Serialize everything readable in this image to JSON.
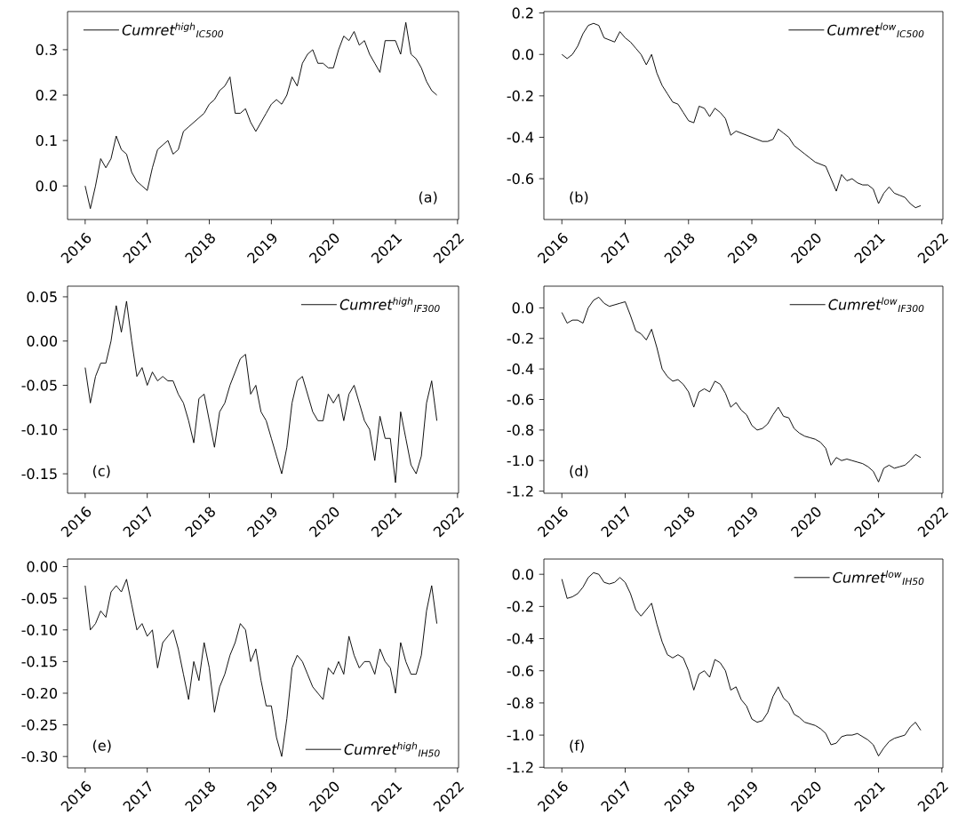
{
  "chart_data": [
    {
      "type": "line",
      "legend": "top left",
      "annotations": [
        "(a)"
      ],
      "xlim": [
        "2015-09-19",
        "2022-01-07"
      ],
      "xticks": [
        "2016",
        "2017",
        "2018",
        "2019",
        "2020",
        "2021",
        "2022"
      ],
      "ylim": [
        -0.074,
        0.384
      ],
      "yticks": [
        {
          "value": 0,
          "label": "0.0"
        },
        0.1,
        0.2,
        0.3
      ],
      "x": [
        "2016-01",
        "2016-02",
        "2016-03",
        "2016-04",
        "2016-05",
        "2016-06",
        "2016-07",
        "2016-08",
        "2016-09",
        "2016-10",
        "2016-11",
        "2016-12",
        "2017-01",
        "2017-02",
        "2017-03",
        "2017-04",
        "2017-05",
        "2017-06",
        "2017-07",
        "2017-08",
        "2017-09",
        "2017-10",
        "2017-11",
        "2017-12",
        "2018-01",
        "2018-02",
        "2018-03",
        "2018-04",
        "2018-05",
        "2018-06",
        "2018-07",
        "2018-08",
        "2018-09",
        "2018-10",
        "2018-11",
        "2018-12",
        "2019-01",
        "2019-02",
        "2019-03",
        "2019-04",
        "2019-05",
        "2019-06",
        "2019-07",
        "2019-08",
        "2019-09",
        "2019-10",
        "2019-11",
        "2019-12",
        "2020-01",
        "2020-02",
        "2020-03",
        "2020-04",
        "2020-05",
        "2020-06",
        "2020-07",
        "2020-08",
        "2020-09",
        "2020-10",
        "2020-11",
        "2020-12",
        "2021-01",
        "2021-02",
        "2021-03",
        "2021-04",
        "2021-05",
        "2021-06",
        "2021-07",
        "2021-08",
        "2021-09"
      ],
      "series": [
        {
          "name": "Cumret$^{high}$$_{IC500}$",
          "color": "#000000",
          "values": [
            0.0,
            -0.05,
            0.0,
            0.06,
            0.04,
            0.06,
            0.11,
            0.08,
            0.07,
            0.03,
            0.01,
            0.0,
            -0.01,
            0.04,
            0.08,
            0.09,
            0.1,
            0.07,
            0.08,
            0.12,
            0.13,
            0.14,
            0.15,
            0.16,
            0.18,
            0.19,
            0.21,
            0.22,
            0.24,
            0.16,
            0.16,
            0.17,
            0.14,
            0.12,
            0.14,
            0.16,
            0.18,
            0.19,
            0.18,
            0.2,
            0.24,
            0.22,
            0.27,
            0.29,
            0.3,
            0.27,
            0.27,
            0.26,
            0.26,
            0.3,
            0.33,
            0.32,
            0.34,
            0.31,
            0.32,
            0.29,
            0.27,
            0.25,
            0.32,
            0.32,
            0.32,
            0.29,
            0.36,
            0.29,
            0.28,
            0.26,
            0.23,
            0.21,
            0.2
          ]
        }
      ]
    },
    {
      "type": "line",
      "legend": "top right",
      "annotations": [
        "(b)"
      ],
      "xlim": [
        "2015-09-19",
        "2022-01-07"
      ],
      "xticks": [
        "2016",
        "2017",
        "2018",
        "2019",
        "2020",
        "2021",
        "2022"
      ],
      "ylim": [
        -0.797,
        0.207
      ],
      "yticks": [
        -0.6,
        -0.4,
        -0.2,
        {
          "value": 0,
          "label": "0.0"
        },
        0.2
      ],
      "x": [
        "2016-01",
        "2016-02",
        "2016-03",
        "2016-04",
        "2016-05",
        "2016-06",
        "2016-07",
        "2016-08",
        "2016-09",
        "2016-10",
        "2016-11",
        "2016-12",
        "2017-01",
        "2017-02",
        "2017-03",
        "2017-04",
        "2017-05",
        "2017-06",
        "2017-07",
        "2017-08",
        "2017-09",
        "2017-10",
        "2017-11",
        "2017-12",
        "2018-01",
        "2018-02",
        "2018-03",
        "2018-04",
        "2018-05",
        "2018-06",
        "2018-07",
        "2018-08",
        "2018-09",
        "2018-10",
        "2018-11",
        "2018-12",
        "2019-01",
        "2019-02",
        "2019-03",
        "2019-04",
        "2019-05",
        "2019-06",
        "2019-07",
        "2019-08",
        "2019-09",
        "2019-10",
        "2019-11",
        "2019-12",
        "2020-01",
        "2020-02",
        "2020-03",
        "2020-04",
        "2020-05",
        "2020-06",
        "2020-07",
        "2020-08",
        "2020-09",
        "2020-10",
        "2020-11",
        "2020-12",
        "2021-01",
        "2021-02",
        "2021-03",
        "2021-04",
        "2021-05",
        "2021-06",
        "2021-07",
        "2021-08",
        "2021-09"
      ],
      "series": [
        {
          "name": "Cumret$^{low}$$_{IC500}$",
          "color": "#000000",
          "values": [
            0.0,
            -0.02,
            0.0,
            0.04,
            0.1,
            0.14,
            0.15,
            0.14,
            0.08,
            0.07,
            0.06,
            0.11,
            0.08,
            0.06,
            0.03,
            0.0,
            -0.05,
            0.0,
            -0.09,
            -0.15,
            -0.19,
            -0.23,
            -0.24,
            -0.28,
            -0.32,
            -0.33,
            -0.25,
            -0.26,
            -0.3,
            -0.26,
            -0.28,
            -0.31,
            -0.39,
            -0.37,
            -0.38,
            -0.39,
            -0.4,
            -0.41,
            -0.42,
            -0.42,
            -0.41,
            -0.36,
            -0.38,
            -0.4,
            -0.44,
            -0.46,
            -0.48,
            -0.5,
            -0.52,
            -0.53,
            -0.54,
            -0.6,
            -0.66,
            -0.58,
            -0.61,
            -0.6,
            -0.62,
            -0.63,
            -0.63,
            -0.65,
            -0.72,
            -0.67,
            -0.64,
            -0.67,
            -0.68,
            -0.69,
            -0.72,
            -0.74,
            -0.73
          ]
        }
      ]
    },
    {
      "type": "line",
      "legend": "top right",
      "annotations": [
        "(c)"
      ],
      "xlim": [
        "2015-09-19",
        "2022-01-07"
      ],
      "xticks": [
        "2016",
        "2017",
        "2018",
        "2019",
        "2020",
        "2021",
        "2022"
      ],
      "ylim": [
        -0.172,
        0.062
      ],
      "yticks": [
        -0.15,
        {
          "value": -0.1,
          "label": "-0.10"
        },
        -0.05,
        {
          "value": 0,
          "label": "0.00"
        },
        0.05
      ],
      "x": [
        "2016-01",
        "2016-02",
        "2016-03",
        "2016-04",
        "2016-05",
        "2016-06",
        "2016-07",
        "2016-08",
        "2016-09",
        "2016-10",
        "2016-11",
        "2016-12",
        "2017-01",
        "2017-02",
        "2017-03",
        "2017-04",
        "2017-05",
        "2017-06",
        "2017-07",
        "2017-08",
        "2017-09",
        "2017-10",
        "2017-11",
        "2017-12",
        "2018-01",
        "2018-02",
        "2018-03",
        "2018-04",
        "2018-05",
        "2018-06",
        "2018-07",
        "2018-08",
        "2018-09",
        "2018-10",
        "2018-11",
        "2018-12",
        "2019-01",
        "2019-02",
        "2019-03",
        "2019-04",
        "2019-05",
        "2019-06",
        "2019-07",
        "2019-08",
        "2019-09",
        "2019-10",
        "2019-11",
        "2019-12",
        "2020-01",
        "2020-02",
        "2020-03",
        "2020-04",
        "2020-05",
        "2020-06",
        "2020-07",
        "2020-08",
        "2020-09",
        "2020-10",
        "2020-11",
        "2020-12",
        "2021-01",
        "2021-02",
        "2021-03",
        "2021-04",
        "2021-05",
        "2021-06",
        "2021-07",
        "2021-08",
        "2021-09"
      ],
      "series": [
        {
          "name": "Cumret$^{high}$$_{IF300}$",
          "color": "#000000",
          "values": [
            -0.03,
            -0.07,
            -0.04,
            -0.025,
            -0.025,
            0.0,
            0.04,
            0.01,
            0.045,
            0.0,
            -0.04,
            -0.03,
            -0.05,
            -0.035,
            -0.045,
            -0.04,
            -0.045,
            -0.045,
            -0.06,
            -0.07,
            -0.09,
            -0.115,
            -0.065,
            -0.06,
            -0.09,
            -0.12,
            -0.08,
            -0.07,
            -0.05,
            -0.035,
            -0.02,
            -0.015,
            -0.06,
            -0.05,
            -0.08,
            -0.09,
            -0.11,
            -0.13,
            -0.15,
            -0.12,
            -0.07,
            -0.045,
            -0.04,
            -0.06,
            -0.08,
            -0.09,
            -0.09,
            -0.06,
            -0.07,
            -0.06,
            -0.09,
            -0.06,
            -0.05,
            -0.07,
            -0.09,
            -0.1,
            -0.135,
            -0.085,
            -0.11,
            -0.11,
            -0.16,
            -0.08,
            -0.11,
            -0.14,
            -0.15,
            -0.13,
            -0.07,
            -0.045,
            -0.09
          ]
        }
      ]
    },
    {
      "type": "line",
      "legend": "top right",
      "annotations": [
        "(d)"
      ],
      "xlim": [
        "2015-09-19",
        "2022-01-07"
      ],
      "xticks": [
        "2016",
        "2017",
        "2018",
        "2019",
        "2020",
        "2021",
        "2022"
      ],
      "ylim": [
        -1.214,
        0.142
      ],
      "yticks": [
        -1.2,
        {
          "value": -1,
          "label": "-1.0"
        },
        -0.8,
        -0.6,
        -0.4,
        -0.2,
        {
          "value": 0,
          "label": "0.0"
        }
      ],
      "x": [
        "2016-01",
        "2016-02",
        "2016-03",
        "2016-04",
        "2016-05",
        "2016-06",
        "2016-07",
        "2016-08",
        "2016-09",
        "2016-10",
        "2016-11",
        "2016-12",
        "2017-01",
        "2017-02",
        "2017-03",
        "2017-04",
        "2017-05",
        "2017-06",
        "2017-07",
        "2017-08",
        "2017-09",
        "2017-10",
        "2017-11",
        "2017-12",
        "2018-01",
        "2018-02",
        "2018-03",
        "2018-04",
        "2018-05",
        "2018-06",
        "2018-07",
        "2018-08",
        "2018-09",
        "2018-10",
        "2018-11",
        "2018-12",
        "2019-01",
        "2019-02",
        "2019-03",
        "2019-04",
        "2019-05",
        "2019-06",
        "2019-07",
        "2019-08",
        "2019-09",
        "2019-10",
        "2019-11",
        "2019-12",
        "2020-01",
        "2020-02",
        "2020-03",
        "2020-04",
        "2020-05",
        "2020-06",
        "2020-07",
        "2020-08",
        "2020-09",
        "2020-10",
        "2020-11",
        "2020-12",
        "2021-01",
        "2021-02",
        "2021-03",
        "2021-04",
        "2021-05",
        "2021-06",
        "2021-07",
        "2021-08",
        "2021-09"
      ],
      "series": [
        {
          "name": "Cumret$^{low}$$_{IF300}$",
          "color": "#000000",
          "values": [
            -0.03,
            -0.1,
            -0.08,
            -0.08,
            -0.1,
            0.0,
            0.05,
            0.07,
            0.03,
            0.01,
            0.02,
            0.03,
            0.04,
            -0.05,
            -0.15,
            -0.17,
            -0.21,
            -0.14,
            -0.26,
            -0.4,
            -0.45,
            -0.48,
            -0.47,
            -0.5,
            -0.55,
            -0.65,
            -0.55,
            -0.53,
            -0.55,
            -0.48,
            -0.5,
            -0.56,
            -0.65,
            -0.62,
            -0.67,
            -0.7,
            -0.77,
            -0.8,
            -0.79,
            -0.76,
            -0.7,
            -0.65,
            -0.71,
            -0.72,
            -0.79,
            -0.82,
            -0.84,
            -0.85,
            -0.86,
            -0.88,
            -0.92,
            -1.03,
            -0.98,
            -1.0,
            -0.99,
            -1.0,
            -1.01,
            -1.02,
            -1.04,
            -1.07,
            -1.14,
            -1.05,
            -1.03,
            -1.05,
            -1.04,
            -1.03,
            -1.0,
            -0.96,
            -0.98
          ]
        }
      ]
    },
    {
      "type": "line",
      "legend": "bottom right",
      "annotations": [
        "(e)"
      ],
      "xlim": [
        "2015-09-19",
        "2022-01-07"
      ],
      "xticks": [
        "2016",
        "2017",
        "2018",
        "2019",
        "2020",
        "2021",
        "2022"
      ],
      "ylim": [
        -0.318,
        0.012
      ],
      "yticks": [
        {
          "value": -0.3,
          "label": "-0.30"
        },
        -0.25,
        {
          "value": -0.2,
          "label": "-0.20"
        },
        -0.15,
        {
          "value": -0.1,
          "label": "-0.10"
        },
        -0.05,
        {
          "value": 0,
          "label": "0.00"
        }
      ],
      "x": [
        "2016-01",
        "2016-02",
        "2016-03",
        "2016-04",
        "2016-05",
        "2016-06",
        "2016-07",
        "2016-08",
        "2016-09",
        "2016-10",
        "2016-11",
        "2016-12",
        "2017-01",
        "2017-02",
        "2017-03",
        "2017-04",
        "2017-05",
        "2017-06",
        "2017-07",
        "2017-08",
        "2017-09",
        "2017-10",
        "2017-11",
        "2017-12",
        "2018-01",
        "2018-02",
        "2018-03",
        "2018-04",
        "2018-05",
        "2018-06",
        "2018-07",
        "2018-08",
        "2018-09",
        "2018-10",
        "2018-11",
        "2018-12",
        "2019-01",
        "2019-02",
        "2019-03",
        "2019-04",
        "2019-05",
        "2019-06",
        "2019-07",
        "2019-08",
        "2019-09",
        "2019-10",
        "2019-11",
        "2019-12",
        "2020-01",
        "2020-02",
        "2020-03",
        "2020-04",
        "2020-05",
        "2020-06",
        "2020-07",
        "2020-08",
        "2020-09",
        "2020-10",
        "2020-11",
        "2020-12",
        "2021-01",
        "2021-02",
        "2021-03",
        "2021-04",
        "2021-05",
        "2021-06",
        "2021-07",
        "2021-08",
        "2021-09"
      ],
      "series": [
        {
          "name": "Cumret$^{high}$$_{IH50}$",
          "color": "#000000",
          "values": [
            -0.03,
            -0.1,
            -0.09,
            -0.07,
            -0.08,
            -0.04,
            -0.03,
            -0.04,
            -0.02,
            -0.06,
            -0.1,
            -0.09,
            -0.11,
            -0.1,
            -0.16,
            -0.12,
            -0.11,
            -0.1,
            -0.13,
            -0.17,
            -0.21,
            -0.15,
            -0.18,
            -0.12,
            -0.16,
            -0.23,
            -0.19,
            -0.17,
            -0.14,
            -0.12,
            -0.09,
            -0.1,
            -0.15,
            -0.13,
            -0.18,
            -0.22,
            -0.22,
            -0.27,
            -0.3,
            -0.24,
            -0.16,
            -0.14,
            -0.15,
            -0.17,
            -0.19,
            -0.2,
            -0.21,
            -0.16,
            -0.17,
            -0.15,
            -0.17,
            -0.11,
            -0.14,
            -0.16,
            -0.15,
            -0.15,
            -0.17,
            -0.13,
            -0.15,
            -0.16,
            -0.2,
            -0.12,
            -0.15,
            -0.17,
            -0.17,
            -0.14,
            -0.07,
            -0.03,
            -0.09
          ]
        }
      ]
    },
    {
      "type": "line",
      "legend": "top right",
      "annotations": [
        "(f)"
      ],
      "xlim": [
        "2015-09-19",
        "2022-01-07"
      ],
      "xticks": [
        "2016",
        "2017",
        "2018",
        "2019",
        "2020",
        "2021",
        "2022"
      ],
      "ylim": [
        -1.204,
        0.095
      ],
      "yticks": [
        -1.2,
        {
          "value": -1,
          "label": "-1.0"
        },
        -0.8,
        -0.6,
        -0.4,
        -0.2,
        {
          "value": 0,
          "label": "0.0"
        }
      ],
      "x": [
        "2016-01",
        "2016-02",
        "2016-03",
        "2016-04",
        "2016-05",
        "2016-06",
        "2016-07",
        "2016-08",
        "2016-09",
        "2016-10",
        "2016-11",
        "2016-12",
        "2017-01",
        "2017-02",
        "2017-03",
        "2017-04",
        "2017-05",
        "2017-06",
        "2017-07",
        "2017-08",
        "2017-09",
        "2017-10",
        "2017-11",
        "2017-12",
        "2018-01",
        "2018-02",
        "2018-03",
        "2018-04",
        "2018-05",
        "2018-06",
        "2018-07",
        "2018-08",
        "2018-09",
        "2018-10",
        "2018-11",
        "2018-12",
        "2019-01",
        "2019-02",
        "2019-03",
        "2019-04",
        "2019-05",
        "2019-06",
        "2019-07",
        "2019-08",
        "2019-09",
        "2019-10",
        "2019-11",
        "2019-12",
        "2020-01",
        "2020-02",
        "2020-03",
        "2020-04",
        "2020-05",
        "2020-06",
        "2020-07",
        "2020-08",
        "2020-09",
        "2020-10",
        "2020-11",
        "2020-12",
        "2021-01",
        "2021-02",
        "2021-03",
        "2021-04",
        "2021-05",
        "2021-06",
        "2021-07",
        "2021-08",
        "2021-09"
      ],
      "series": [
        {
          "name": "Cumret$^{low}$$_{IH50}$",
          "color": "#000000",
          "values": [
            -0.03,
            -0.15,
            -0.14,
            -0.12,
            -0.08,
            -0.02,
            0.01,
            0.0,
            -0.05,
            -0.06,
            -0.05,
            -0.02,
            -0.05,
            -0.12,
            -0.22,
            -0.26,
            -0.22,
            -0.18,
            -0.31,
            -0.42,
            -0.5,
            -0.52,
            -0.5,
            -0.52,
            -0.6,
            -0.72,
            -0.62,
            -0.6,
            -0.64,
            -0.53,
            -0.55,
            -0.6,
            -0.72,
            -0.7,
            -0.78,
            -0.82,
            -0.9,
            -0.92,
            -0.91,
            -0.86,
            -0.76,
            -0.7,
            -0.77,
            -0.8,
            -0.87,
            -0.89,
            -0.92,
            -0.93,
            -0.94,
            -0.96,
            -0.99,
            -1.06,
            -1.05,
            -1.01,
            -1.0,
            -1.0,
            -0.99,
            -1.01,
            -1.03,
            -1.06,
            -1.13,
            -1.08,
            -1.04,
            -1.02,
            -1.01,
            -1.0,
            -0.95,
            -0.92,
            -0.97
          ]
        }
      ]
    }
  ]
}
